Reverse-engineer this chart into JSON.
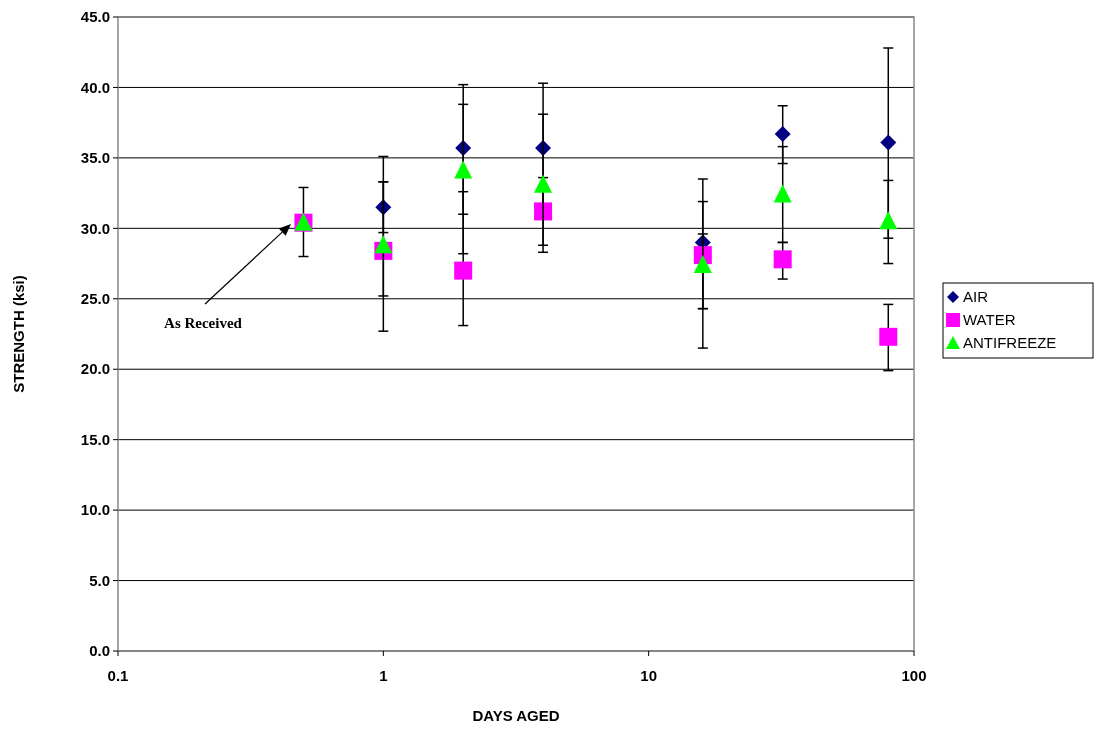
{
  "chart_data": {
    "type": "scatter",
    "xlabel": "DAYS AGED",
    "ylabel": "STRENGTH (ksi)",
    "log": "x",
    "grid": "y",
    "legend": "right",
    "xlim": [
      0.1,
      100
    ],
    "xticks": [
      0.1,
      1,
      10,
      100
    ],
    "ylim": [
      0,
      45
    ],
    "yticks": [
      {
        "value": 0,
        "label": "0.0"
      },
      {
        "value": 5,
        "label": "5.0"
      },
      {
        "value": 10,
        "label": "10.0"
      },
      {
        "value": 15,
        "label": "15.0"
      },
      {
        "value": 20,
        "label": "20.0"
      },
      {
        "value": 25,
        "label": "25.0"
      },
      {
        "value": 30,
        "label": "30.0"
      },
      {
        "value": 35,
        "label": "35.0"
      },
      {
        "value": 40,
        "label": "40.0"
      },
      {
        "value": 45,
        "label": "45.0"
      }
    ],
    "x": [
      0.5,
      1,
      2,
      4,
      16,
      32,
      80
    ],
    "series": [
      {
        "name": "AIR",
        "color": "#000080",
        "marker": "diamond",
        "values": [
          null,
          31.5,
          35.7,
          35.7,
          29.0,
          36.7,
          36.1
        ],
        "errors": [
          null,
          [
            29.7,
            35.1
          ],
          [
            31.0,
            40.2
          ],
          [
            31.1,
            40.3
          ],
          [
            24.3,
            33.5
          ],
          [
            34.6,
            38.7
          ],
          [
            29.3,
            42.8
          ]
        ]
      },
      {
        "name": "WATER",
        "color": "#ff00ff",
        "marker": "square",
        "values": [
          30.4,
          28.4,
          27.0,
          31.2,
          28.1,
          27.8,
          22.3
        ],
        "errors": [
          [
            28.0,
            32.9
          ],
          [
            22.7,
            33.3
          ],
          [
            23.1,
            32.6
          ],
          [
            28.8,
            33.6
          ],
          [
            24.3,
            31.9
          ],
          [
            26.4,
            29.0
          ],
          [
            19.9,
            24.6
          ]
        ]
      },
      {
        "name": "ANTIFREEZE",
        "color": "#00ff00",
        "marker": "triangle",
        "values": [
          30.4,
          28.8,
          34.1,
          33.1,
          27.4,
          32.4,
          30.5
        ],
        "errors": [
          null,
          [
            25.2,
            33.3
          ],
          [
            28.2,
            38.8
          ],
          [
            28.3,
            38.1
          ],
          [
            21.5,
            29.6
          ],
          [
            29.0,
            35.8
          ],
          [
            27.5,
            33.4
          ]
        ]
      }
    ],
    "annotations": [
      "As Received"
    ]
  }
}
